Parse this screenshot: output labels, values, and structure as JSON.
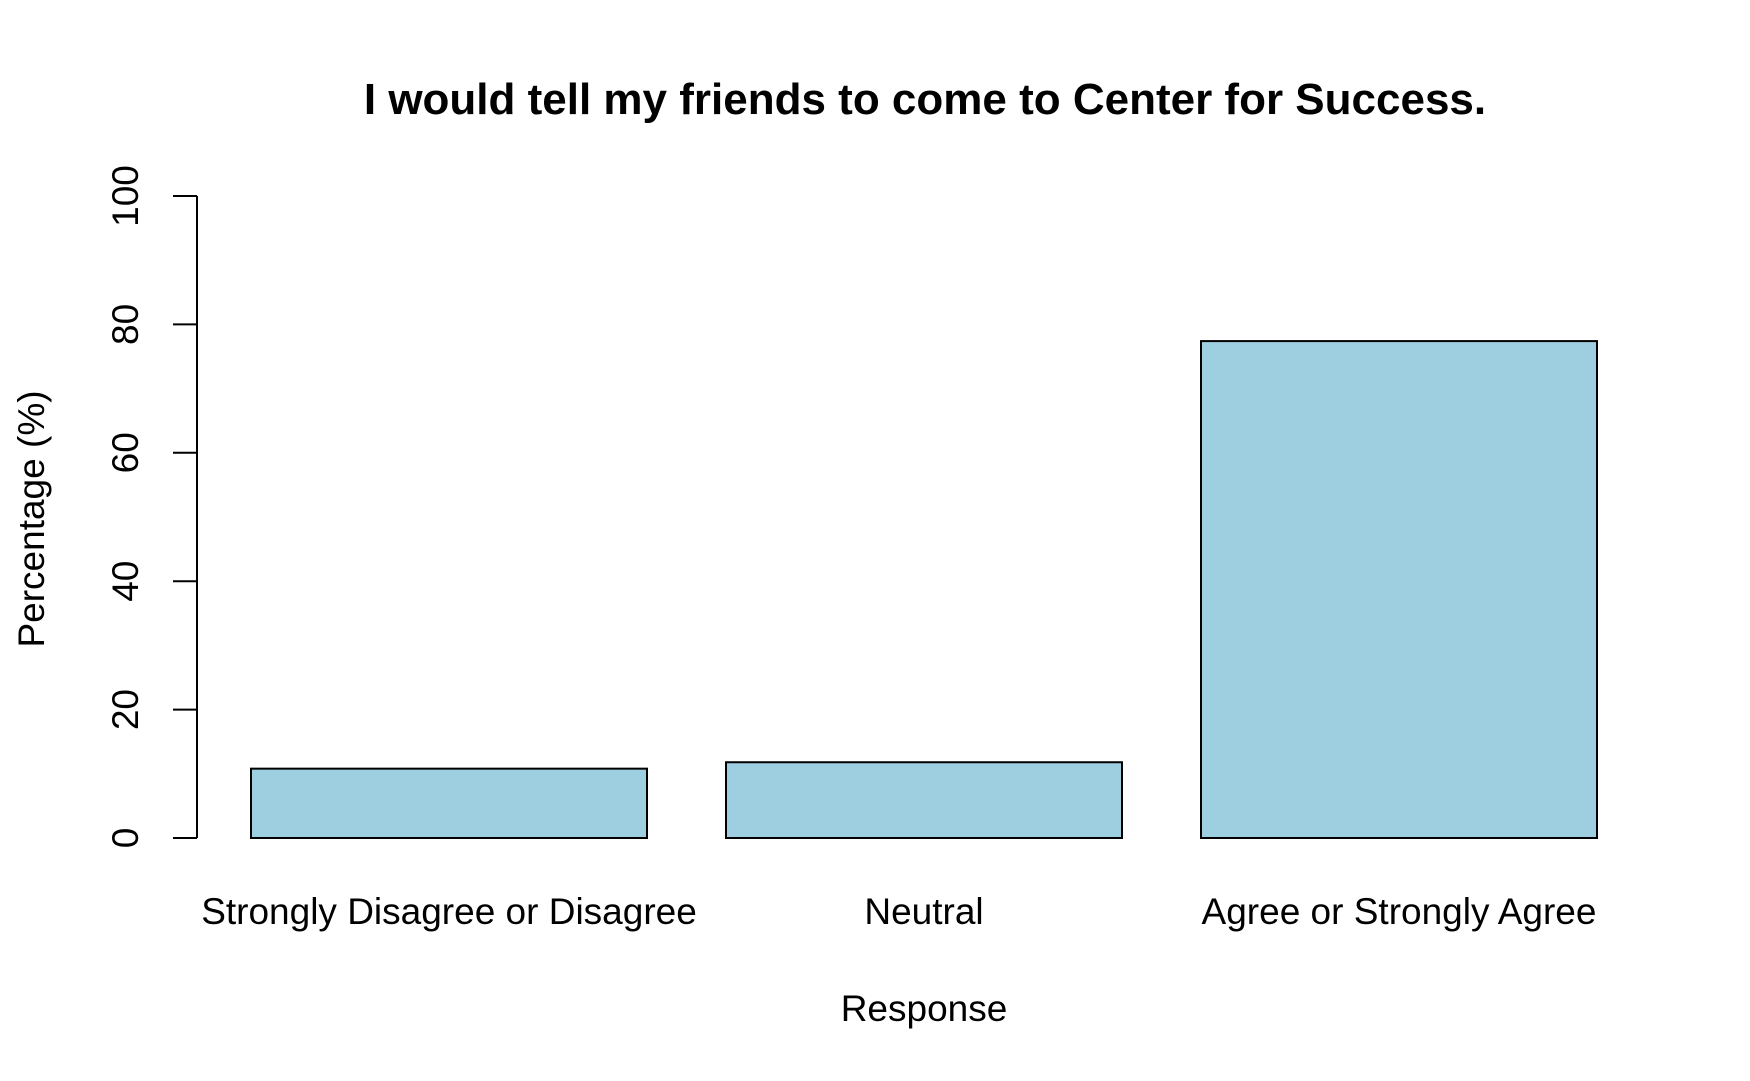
{
  "chart_data": {
    "type": "bar",
    "title": "I would tell my friends to come to Center for Success.",
    "xlabel": "Response",
    "ylabel": "Percentage (%)",
    "categories": [
      "Strongly Disagree or Disagree",
      "Neutral",
      "Agree or Strongly Agree"
    ],
    "values": [
      10.8,
      11.8,
      77.4
    ],
    "ylim": [
      0,
      100
    ],
    "yticks": [
      "0",
      "20",
      "40",
      "60",
      "80",
      "100"
    ],
    "bar_color": "#9ecfe0",
    "bar_edge_color": "#000000",
    "grid": false,
    "legend": "none"
  }
}
